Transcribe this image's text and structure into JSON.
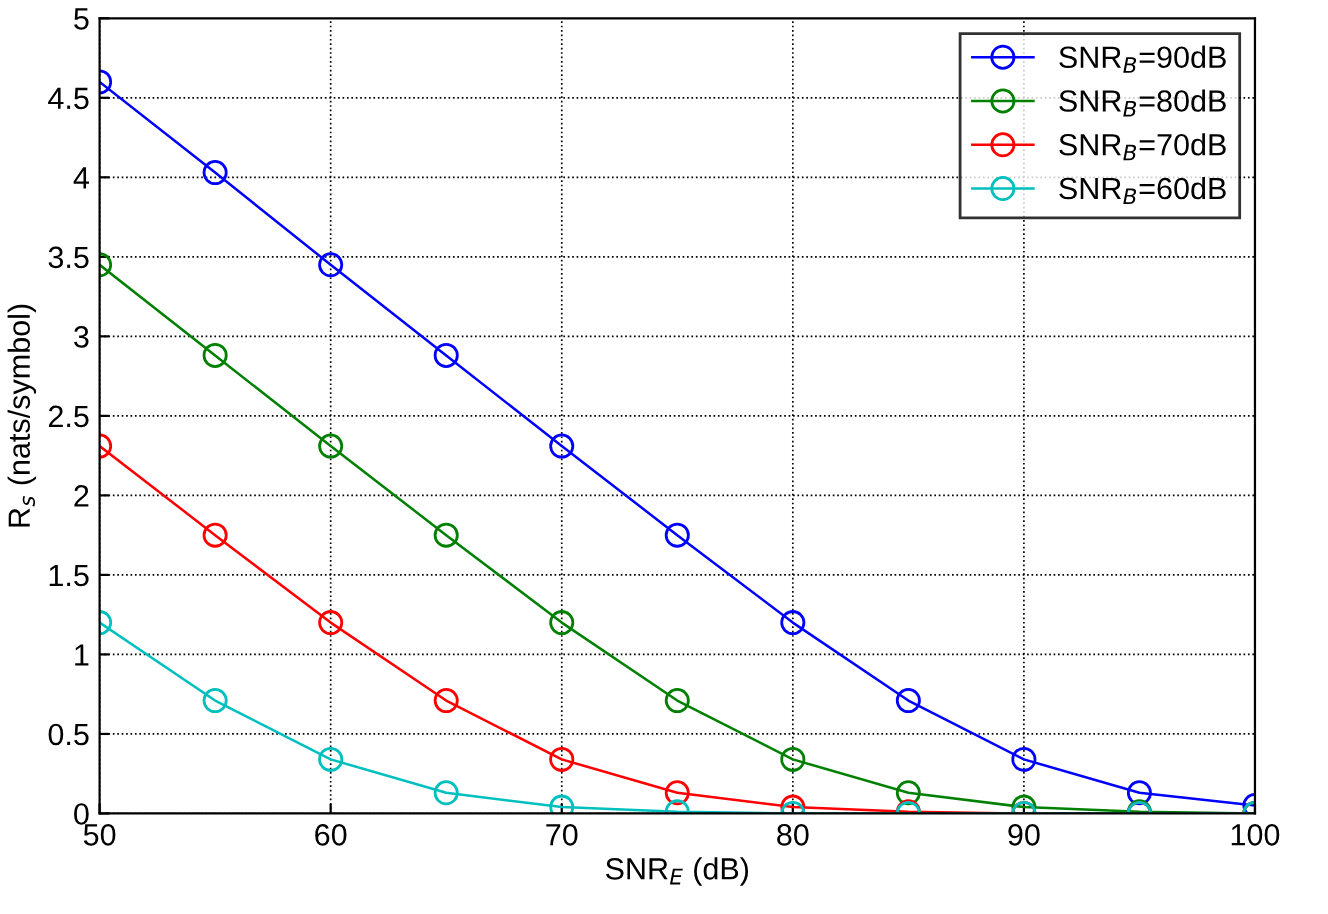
{
  "chart_data": {
    "type": "line",
    "xlabel": "SNR$_{E}$ (dB)",
    "ylabel": "R$_{s}$ (nats/symbol)",
    "x": [
      50,
      55,
      60,
      65,
      70,
      75,
      80,
      85,
      90,
      95,
      100
    ],
    "series": [
      {
        "name": "SNR$_{B}$=90dB",
        "color": "#0000ff",
        "values": [
          4.6,
          4.03,
          3.45,
          2.88,
          2.31,
          1.75,
          1.2,
          0.71,
          0.34,
          0.13,
          0.05
        ]
      },
      {
        "name": "SNR$_{B}$=80dB",
        "color": "#008000",
        "values": [
          3.45,
          2.88,
          2.31,
          1.75,
          1.2,
          0.71,
          0.34,
          0.13,
          0.04,
          0.01,
          0.0
        ]
      },
      {
        "name": "SNR$_{B}$=70dB",
        "color": "#ff0000",
        "values": [
          2.31,
          1.75,
          1.2,
          0.71,
          0.34,
          0.13,
          0.04,
          0.01,
          0.0,
          0.0,
          0.0
        ]
      },
      {
        "name": "SNR$_{B}$=60dB",
        "color": "#00bfbf",
        "values": [
          1.2,
          0.71,
          0.34,
          0.13,
          0.04,
          0.01,
          0.0,
          0.0,
          0.0,
          0.0,
          0.0
        ]
      }
    ],
    "xlim": [
      50,
      100
    ],
    "ylim": [
      0,
      5
    ],
    "xticks": [
      50,
      60,
      70,
      80,
      90,
      100
    ],
    "yticks": [
      0,
      0.5,
      1,
      1.5,
      2,
      2.5,
      3,
      3.5,
      4,
      4.5,
      5
    ],
    "grid": true,
    "legend": "top right",
    "marker": "circle",
    "line_style": "solid"
  }
}
